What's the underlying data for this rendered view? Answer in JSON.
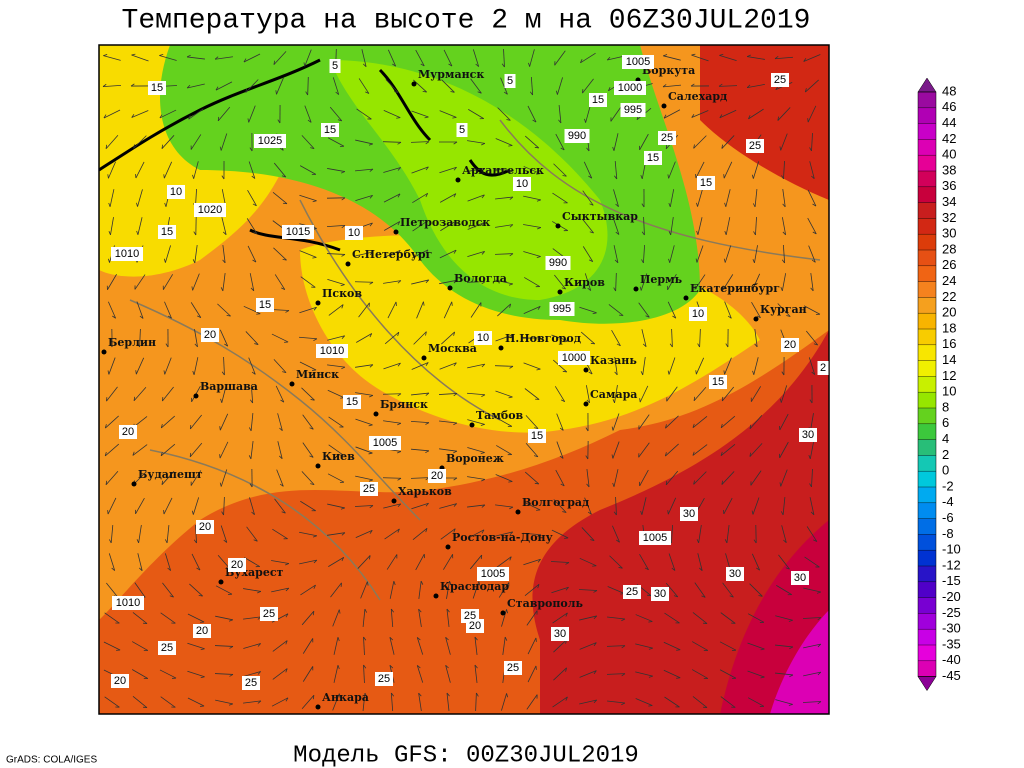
{
  "map": {
    "title": "Температура на высоте 2 м на 06Z30JUL2019",
    "footer": "Модель GFS: 00Z30JUL2019",
    "credit": "GrADS: COLA/IGES",
    "cities": [
      "Мурманск",
      "Воркута",
      "Салехард",
      "Архангельск",
      "Сыктывкар",
      "Петрозаводск",
      "С.Петербург",
      "Вологда",
      "Киров",
      "Пермь",
      "Екатеринбург",
      "Курган",
      "Псков",
      "Берлин",
      "Москва",
      "Н.Новгород",
      "Казань",
      "Минск",
      "Варшава",
      "Самара",
      "Брянск",
      "Тамбов",
      "Киев",
      "Воронеж",
      "Харьков",
      "Будапешт",
      "Волгоград",
      "Ростов-на-Дону",
      "Бухарест",
      "Краснодар",
      "Ставрополь",
      "Анкара"
    ],
    "isobar_labels": [
      1005,
      1000,
      995,
      990,
      1025,
      1020,
      1015,
      1010,
      990,
      995,
      1000,
      1010,
      1005,
      1005,
      1005,
      1010
    ],
    "isotherm_labels": [
      15,
      10,
      15,
      10,
      15,
      20,
      10,
      15,
      20,
      15,
      20,
      25,
      20,
      20,
      25,
      20,
      25,
      20,
      25,
      25,
      25,
      30,
      25,
      20,
      30,
      30,
      30,
      30,
      20,
      25,
      25,
      25,
      15,
      15,
      15,
      10,
      10,
      15,
      25,
      30,
      5,
      5,
      15,
      5,
      2
    ],
    "colorbar": {
      "labels": [
        48,
        46,
        44,
        42,
        40,
        38,
        36,
        34,
        32,
        30,
        28,
        26,
        24,
        22,
        20,
        18,
        16,
        14,
        12,
        10,
        8,
        6,
        4,
        2,
        0,
        -2,
        -4,
        -6,
        -8,
        -10,
        -12,
        -15,
        -20,
        -25,
        -30,
        -35,
        -40,
        -45
      ],
      "colors": [
        "#7a1a8a",
        "#9a0aa0",
        "#b000b4",
        "#c800c8",
        "#dc00b4",
        "#e60096",
        "#d2005a",
        "#c8003c",
        "#c81e1e",
        "#d22814",
        "#dc3c0a",
        "#e65014",
        "#f06414",
        "#f5821e",
        "#f5a01e",
        "#f8b400",
        "#f8cc00",
        "#f8e600",
        "#f0f000",
        "#c8f000",
        "#96e600",
        "#64d21e",
        "#3cc83c",
        "#28be78",
        "#14c8b4",
        "#00c8dc",
        "#00aaf0",
        "#008cf0",
        "#006ee6",
        "#0050dc",
        "#0032d2",
        "#2814c8",
        "#5000c8",
        "#7800d2",
        "#a000dc",
        "#c800e6",
        "#e600dc",
        "#dc00b4",
        "#8c0096"
      ]
    }
  }
}
